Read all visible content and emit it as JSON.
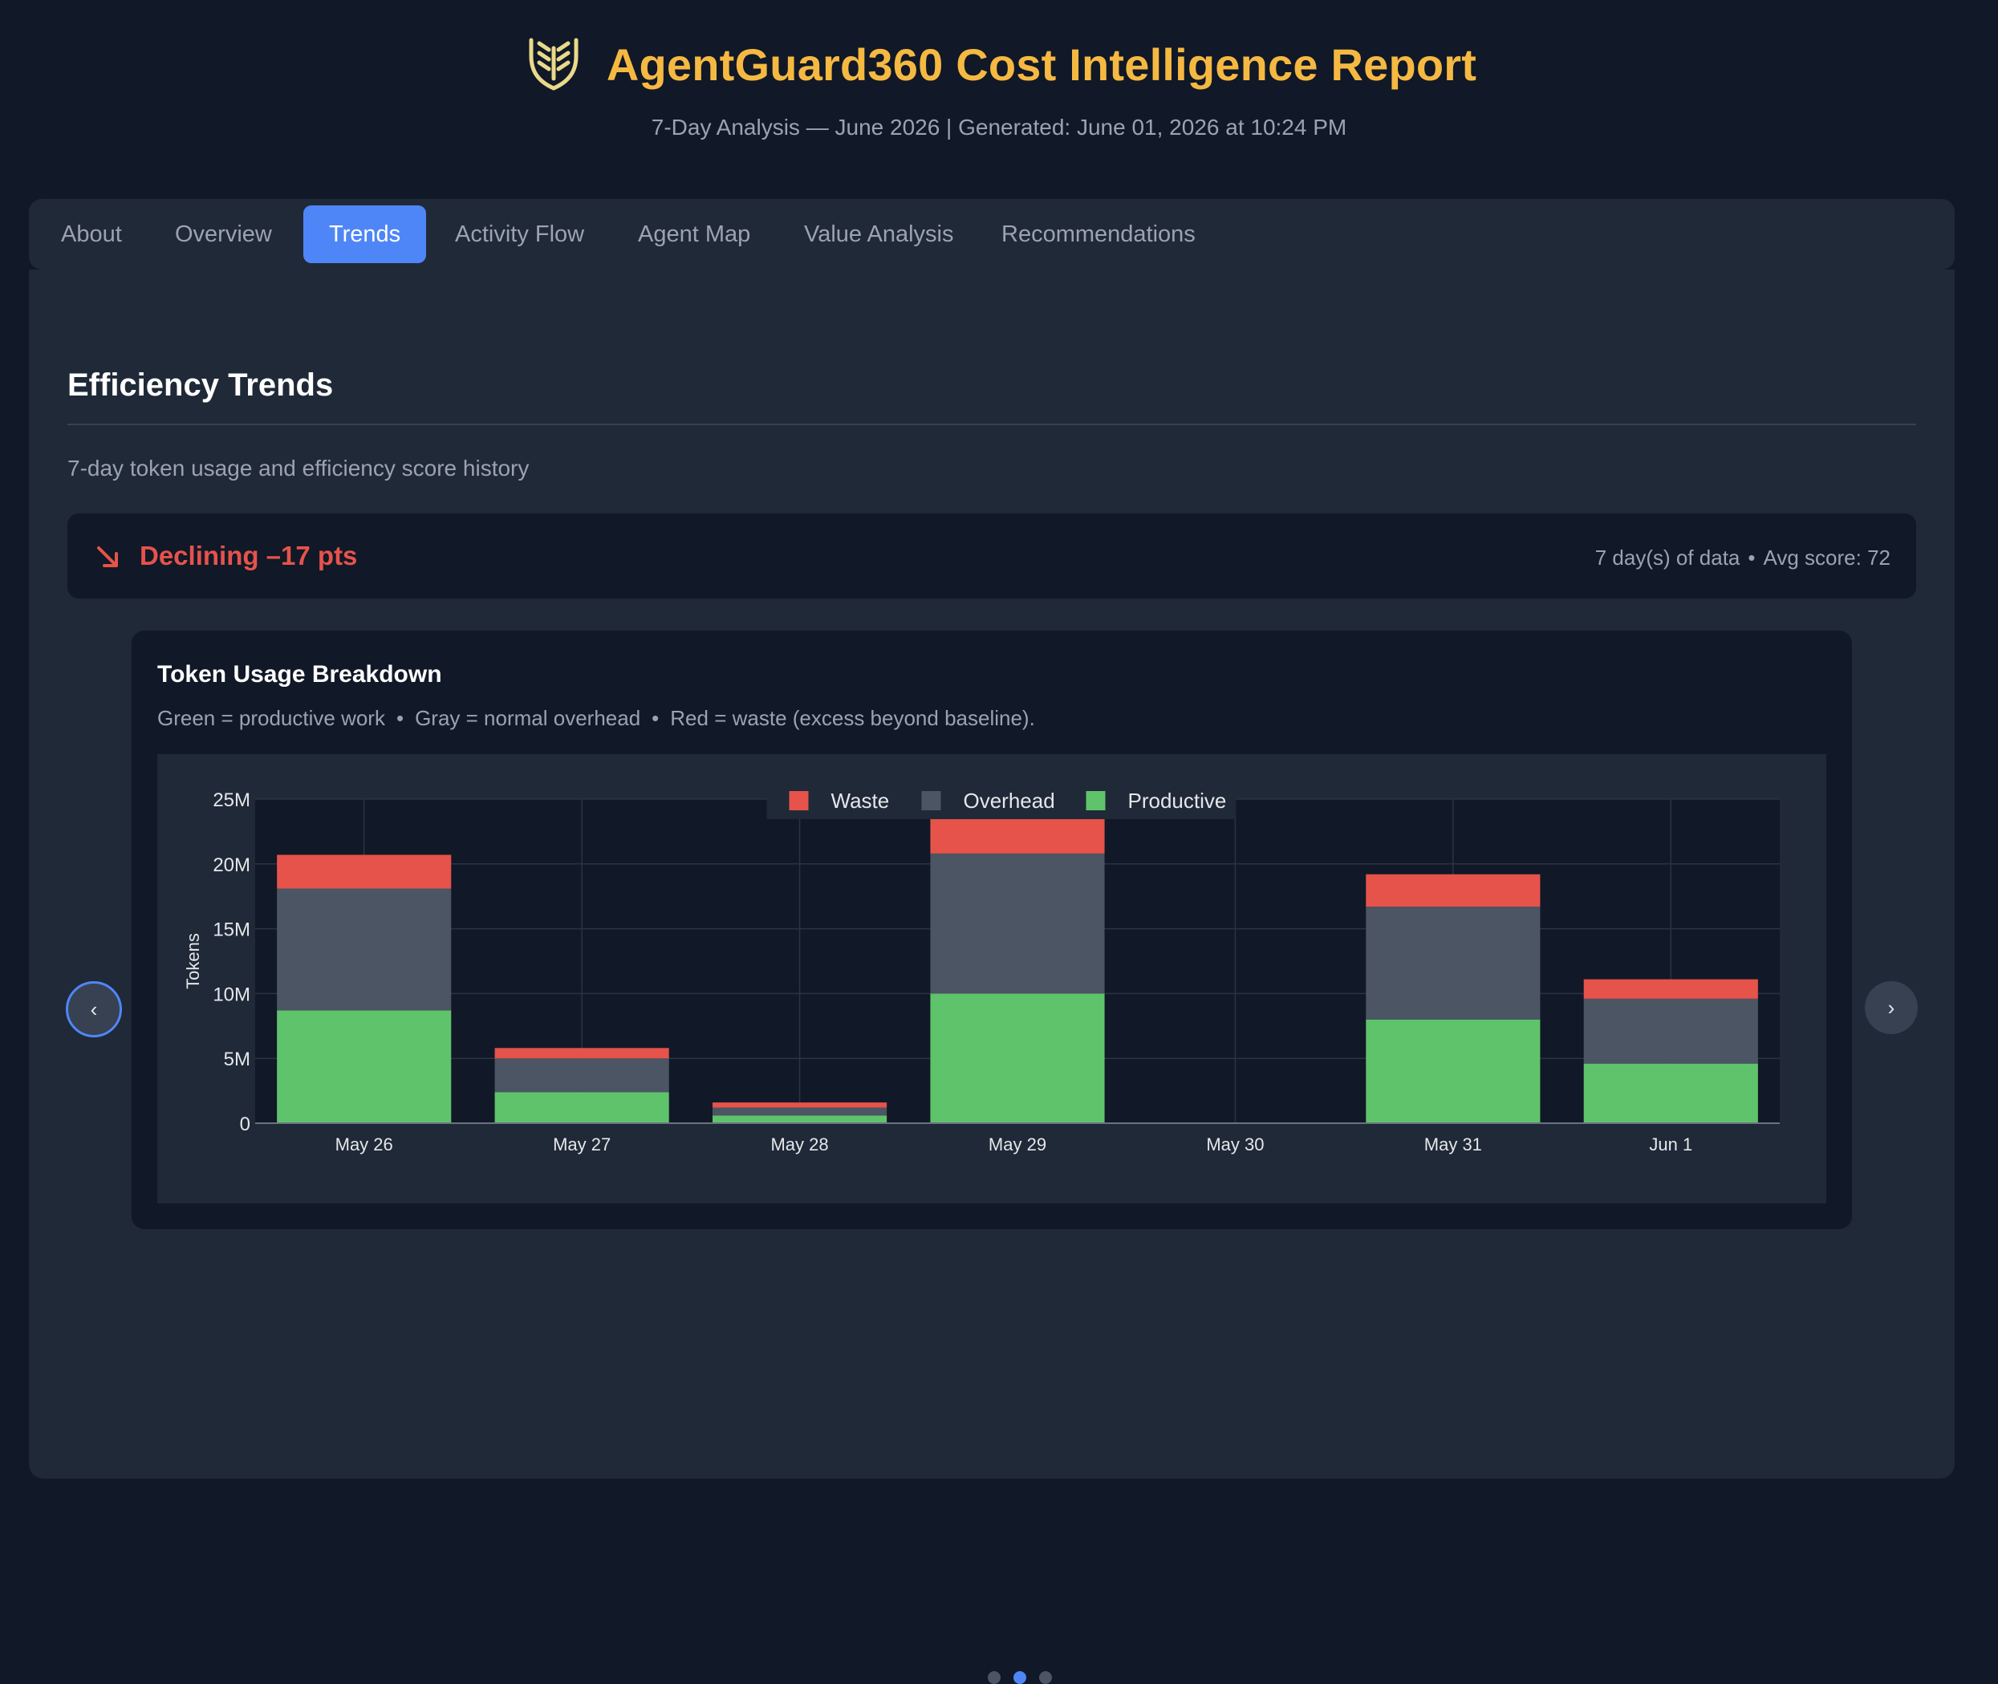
{
  "header": {
    "title": "AgentGuard360 Cost Intelligence Report",
    "subtitle": "7-Day Analysis — June 2026 | Generated: June 01, 2026 at 10:24 PM",
    "logo_icon": "shield-logo-icon",
    "accent_color": "#f5b942"
  },
  "tabs": [
    {
      "label": "About",
      "active": false
    },
    {
      "label": "Overview",
      "active": false
    },
    {
      "label": "Trends",
      "active": true
    },
    {
      "label": "Activity Flow",
      "active": false
    },
    {
      "label": "Agent Map",
      "active": false
    },
    {
      "label": "Value Analysis",
      "active": false
    },
    {
      "label": "Recommendations",
      "active": false
    }
  ],
  "section": {
    "title": "Efficiency Trends",
    "description": "7-day token usage and efficiency score history"
  },
  "trend": {
    "icon": "trend-down-arrow-icon",
    "label": "Declining –17 pts",
    "days": "7 day(s) of data",
    "separator": "•",
    "avg_score": "Avg score: 72",
    "color": "#e5534b"
  },
  "card": {
    "title": "Token Usage Breakdown",
    "legend_green": "Green = productive work",
    "legend_gray": "Gray = normal overhead",
    "legend_red": "Red = waste (excess beyond baseline).",
    "separator": "•"
  },
  "carousel": {
    "prev_label": "‹",
    "next_label": "›",
    "pages": 3,
    "active_page": 2
  },
  "chart_data": {
    "type": "bar",
    "stacked": true,
    "categories": [
      "May 26",
      "May 27",
      "May 28",
      "May 29",
      "May 30",
      "May 31",
      "Jun 1"
    ],
    "series": [
      {
        "name": "Productive",
        "color": "#5fc36b",
        "values": [
          8.7,
          2.4,
          0.6,
          10.0,
          0,
          8.0,
          4.6
        ]
      },
      {
        "name": "Overhead",
        "color": "#4b5563",
        "values": [
          9.4,
          2.6,
          0.6,
          10.8,
          0,
          8.7,
          5.0
        ]
      },
      {
        "name": "Waste",
        "color": "#e5534b",
        "values": [
          2.6,
          0.8,
          0.4,
          2.9,
          0,
          2.5,
          1.5
        ]
      }
    ],
    "legend": [
      {
        "name": "Waste",
        "color": "#e5534b"
      },
      {
        "name": "Overhead",
        "color": "#4b5563"
      },
      {
        "name": "Productive",
        "color": "#5fc36b"
      }
    ],
    "legend_position": "top-center",
    "ylabel": "Tokens",
    "ylim": [
      0,
      25
    ],
    "y_unit": "M",
    "y_ticks": [
      0,
      5,
      10,
      15,
      20,
      25
    ],
    "y_tick_labels": [
      "0",
      "5M",
      "10M",
      "15M",
      "20M",
      "25M"
    ],
    "grid": true
  }
}
